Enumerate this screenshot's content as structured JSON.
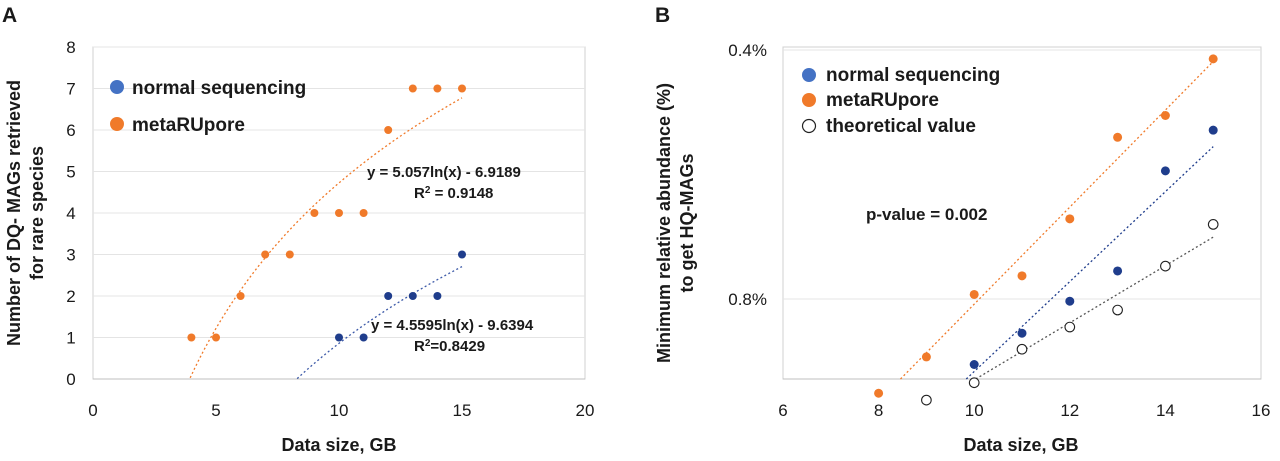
{
  "chart_data": [
    {
      "panel": "A",
      "type": "scatter",
      "xlabel": "Data size, GB",
      "ylabel_lines": [
        "Number of DQ- MAGs retrieved",
        "for rare species"
      ],
      "xlim": [
        0,
        20
      ],
      "ylim": [
        0,
        8
      ],
      "xticks": [
        0,
        5,
        10,
        15,
        20
      ],
      "yticks": [
        0,
        1,
        2,
        3,
        4,
        5,
        6,
        7,
        8
      ],
      "grid": "horizontal",
      "legend_position": "top-left",
      "series": [
        {
          "name": "normal sequencing",
          "color": "#1f3d8c",
          "legend_color": "#4472c4",
          "points": [
            [
              10,
              1
            ],
            [
              11,
              1
            ],
            [
              12,
              2
            ],
            [
              13,
              2
            ],
            [
              14,
              2
            ],
            [
              15,
              3
            ]
          ],
          "trendline": {
            "type": "log",
            "a": 4.5595,
            "b": -9.6394,
            "x_range": [
              8.3,
              15
            ],
            "color": "#3d5aa8"
          }
        },
        {
          "name": "metaRUpore",
          "color": "#f07a2a",
          "legend_color": "#f07a2a",
          "points": [
            [
              4,
              1
            ],
            [
              5,
              1
            ],
            [
              6,
              2
            ],
            [
              7,
              3
            ],
            [
              8,
              3
            ],
            [
              9,
              4
            ],
            [
              10,
              4
            ],
            [
              11,
              4
            ],
            [
              12,
              6
            ],
            [
              13,
              7
            ],
            [
              14,
              7
            ],
            [
              15,
              7
            ]
          ],
          "trendline": {
            "type": "log",
            "a": 5.057,
            "b": -6.9189,
            "x_range": [
              3.95,
              15
            ],
            "color": "#f07a2a"
          }
        }
      ],
      "annotations": [
        {
          "id": "eq_meta",
          "text": "y = 5.057ln(x) - 6.9189"
        },
        {
          "id": "r2_meta",
          "pre": "R",
          "sup": "2",
          "post": " = 0.9148"
        },
        {
          "id": "eq_normal",
          "text": "y = 4.5595ln(x) - 9.6394"
        },
        {
          "id": "r2_normal",
          "pre": "R",
          "sup": "2",
          "post": "=0.8429"
        }
      ]
    },
    {
      "panel": "B",
      "type": "scatter",
      "xlabel": "Data size, GB",
      "ylabel_lines": [
        "Minimum relative abundance (%)",
        "to get HQ-MAGs"
      ],
      "xlim": [
        6,
        16
      ],
      "xticks": [
        6,
        8,
        10,
        12,
        14,
        16
      ],
      "ytick_labels": [
        "0.4%",
        "0.8%"
      ],
      "yticks": [
        0.4,
        0.8
      ],
      "y_reversed_log": true,
      "grid": "horizontal",
      "legend_position": "top-left",
      "series": [
        {
          "name": "normal sequencing",
          "color": "#1f3d8c",
          "legend_color": "#4472c4",
          "points": [
            [
              9,
              1.06
            ],
            [
              10,
              0.96
            ],
            [
              11,
              0.88
            ],
            [
              12,
              0.805
            ],
            [
              13,
              0.74
            ],
            [
              14,
              0.56
            ],
            [
              15,
              0.5
            ]
          ]
        },
        {
          "name": "metaRUpore",
          "color": "#f07a2a",
          "legend_color": "#f07a2a",
          "points": [
            [
              8,
              1.04
            ],
            [
              9,
              0.94
            ],
            [
              10,
              0.79
            ],
            [
              11,
              0.75
            ],
            [
              12,
              0.64
            ],
            [
              13,
              0.51
            ],
            [
              14,
              0.48
            ],
            [
              15,
              0.41
            ]
          ]
        },
        {
          "name": "theoretical  value",
          "color": "#222222",
          "hollow": true,
          "points": [
            [
              9,
              1.06
            ],
            [
              10,
              1.01
            ],
            [
              11,
              0.92
            ],
            [
              12,
              0.865
            ],
            [
              13,
              0.825
            ],
            [
              14,
              0.73
            ],
            [
              15,
              0.65
            ]
          ]
        }
      ],
      "annotations": [
        {
          "id": "pvalue",
          "text": "p-value = 0.002"
        }
      ]
    }
  ]
}
